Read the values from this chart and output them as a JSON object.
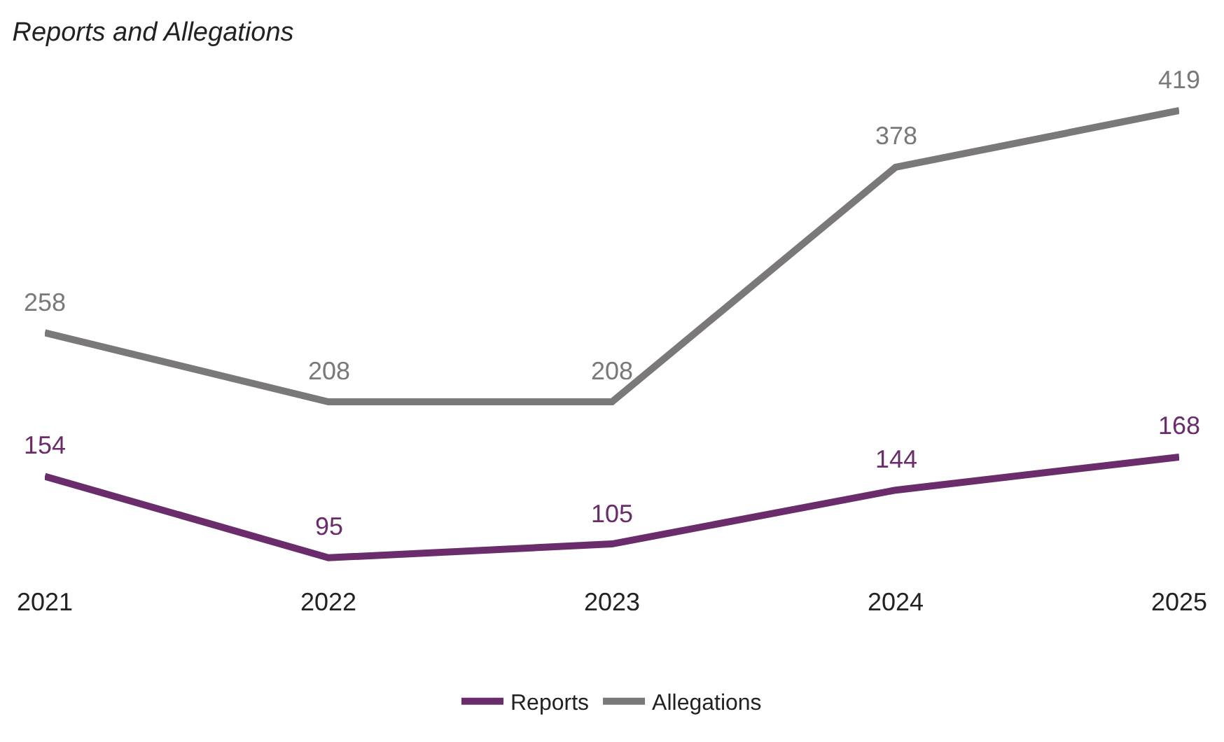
{
  "chart_data": {
    "type": "line",
    "title": "Reports and Allegations",
    "categories": [
      "2021",
      "2022",
      "2023",
      "2024",
      "2025"
    ],
    "series": [
      {
        "name": "Reports",
        "color": "#6b2c6c",
        "values": [
          154,
          95,
          105,
          144,
          168
        ]
      },
      {
        "name": "Allegations",
        "color": "#7a7879",
        "values": [
          258,
          208,
          208,
          378,
          419
        ]
      }
    ],
    "data_labels": true,
    "legend": "bottom",
    "marker": "none",
    "line_style": "solid",
    "tick_labels": "x"
  }
}
